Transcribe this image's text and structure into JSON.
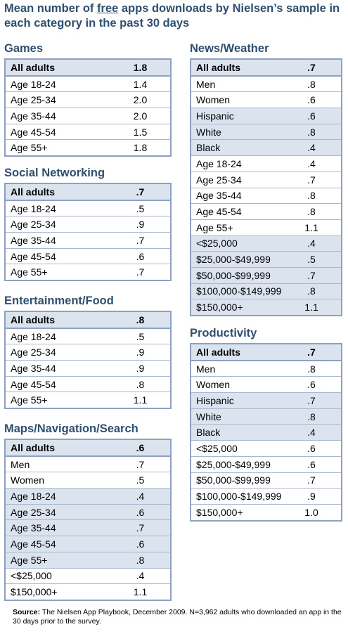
{
  "title": {
    "pre": "Mean number of ",
    "underlined": "free",
    "post": " apps downloads by Nielsen’s sample in each category in the past 30 days"
  },
  "sections": [
    {
      "id": "games",
      "title": "Games",
      "rows": [
        {
          "label": "All adults",
          "value": "1.8",
          "shade": true
        },
        {
          "label": "Age 18-24",
          "value": "1.4",
          "shade": false
        },
        {
          "label": "Age 25-34",
          "value": "2.0",
          "shade": false
        },
        {
          "label": "Age 35-44",
          "value": "2.0",
          "shade": false
        },
        {
          "label": "Age 45-54",
          "value": "1.5",
          "shade": false
        },
        {
          "label": "Age 55+",
          "value": "1.8",
          "shade": false
        }
      ]
    },
    {
      "id": "social-networking",
      "title": "Social Networking",
      "rows": [
        {
          "label": "All adults",
          "value": ".7",
          "shade": true
        },
        {
          "label": "Age 18-24",
          "value": ".5",
          "shade": false
        },
        {
          "label": "Age 25-34",
          "value": ".9",
          "shade": false
        },
        {
          "label": "Age 35-44",
          "value": ".7",
          "shade": false
        },
        {
          "label": "Age 45-54",
          "value": ".6",
          "shade": false
        },
        {
          "label": "Age 55+",
          "value": ".7",
          "shade": false
        }
      ]
    },
    {
      "id": "entertainment-food",
      "title": "Entertainment/Food",
      "rows": [
        {
          "label": "All adults",
          "value": ".8",
          "shade": true
        },
        {
          "label": "Age 18-24",
          "value": ".5",
          "shade": false
        },
        {
          "label": "Age 25-34",
          "value": ".9",
          "shade": false
        },
        {
          "label": "Age 35-44",
          "value": ".9",
          "shade": false
        },
        {
          "label": "Age 45-54",
          "value": ".8",
          "shade": false
        },
        {
          "label": "Age 55+",
          "value": "1.1",
          "shade": false
        }
      ]
    },
    {
      "id": "maps-navigation-search",
      "title": "Maps/Navigation/Search",
      "rows": [
        {
          "label": "All adults",
          "value": ".6",
          "shade": true
        },
        {
          "label": "Men",
          "value": ".7",
          "shade": false
        },
        {
          "label": "Women",
          "value": ".5",
          "shade": false
        },
        {
          "label": "Age 18-24",
          "value": ".4",
          "shade": true
        },
        {
          "label": "Age 25-34",
          "value": ".6",
          "shade": true
        },
        {
          "label": "Age 35-44",
          "value": ".7",
          "shade": true
        },
        {
          "label": "Age 45-54",
          "value": ".6",
          "shade": true
        },
        {
          "label": "Age 55+",
          "value": ".8",
          "shade": true
        },
        {
          "label": "<$25,000",
          "value": ".4",
          "shade": false
        },
        {
          "label": "$150,000+",
          "value": "1.1",
          "shade": false
        }
      ]
    },
    {
      "id": "news-weather",
      "title": "News/Weather",
      "rows": [
        {
          "label": "All adults",
          "value": ".7",
          "shade": true
        },
        {
          "label": "Men",
          "value": ".8",
          "shade": false
        },
        {
          "label": "Women",
          "value": ".6",
          "shade": false
        },
        {
          "label": "Hispanic",
          "value": ".6",
          "shade": true
        },
        {
          "label": "White",
          "value": ".8",
          "shade": true
        },
        {
          "label": "Black",
          "value": ".4",
          "shade": true
        },
        {
          "label": "Age 18-24",
          "value": ".4",
          "shade": false
        },
        {
          "label": "Age 25-34",
          "value": ".7",
          "shade": false
        },
        {
          "label": "Age 35-44",
          "value": ".8",
          "shade": false
        },
        {
          "label": "Age 45-54",
          "value": ".8",
          "shade": false
        },
        {
          "label": "Age 55+",
          "value": "1.1",
          "shade": false
        },
        {
          "label": "<$25,000",
          "value": ".4",
          "shade": true
        },
        {
          "label": "$25,000-$49,999",
          "value": ".5",
          "shade": true
        },
        {
          "label": "$50,000-$99,999",
          "value": ".7",
          "shade": true
        },
        {
          "label": "$100,000-$149,999",
          "value": ".8",
          "shade": true
        },
        {
          "label": "$150,000+",
          "value": "1.1",
          "shade": true
        }
      ]
    },
    {
      "id": "productivity",
      "title": "Productivity",
      "rows": [
        {
          "label": "All adults",
          "value": ".7",
          "shade": true
        },
        {
          "label": "Men",
          "value": ".8",
          "shade": false
        },
        {
          "label": "Women",
          "value": ".6",
          "shade": false
        },
        {
          "label": "Hispanic",
          "value": ".7",
          "shade": true
        },
        {
          "label": "White",
          "value": ".8",
          "shade": true
        },
        {
          "label": "Black",
          "value": ".4",
          "shade": true
        },
        {
          "label": "<$25,000",
          "value": ".6",
          "shade": false
        },
        {
          "label": "$25,000-$49,999",
          "value": ".6",
          "shade": false
        },
        {
          "label": "$50,000-$99,999",
          "value": ".7",
          "shade": false
        },
        {
          "label": "$100,000-$149,999",
          "value": ".9",
          "shade": false
        },
        {
          "label": "$150,000+",
          "value": "1.0",
          "shade": false
        }
      ]
    }
  ],
  "source": {
    "label": "Source:",
    "text": "  The Nielsen App Playbook, December 2009. N=3,962 adults who downloaded an app in the 30 days prior to the survey."
  }
}
